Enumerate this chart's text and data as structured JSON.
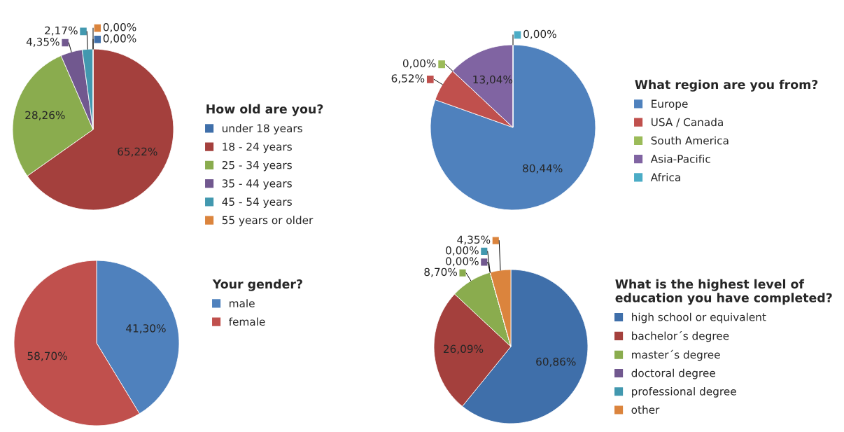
{
  "chart_data": [
    {
      "type": "pie",
      "title": "How old are you?",
      "categories": [
        "under 18 years",
        "18 - 24 years",
        "25 - 34 years",
        "35 - 44 years",
        "45 - 54 years",
        "55 years or older"
      ],
      "values": [
        0,
        65.22,
        28.26,
        4.35,
        2.17,
        0
      ],
      "value_labels": [
        "0,00%",
        "65,22%",
        "28,26%",
        "4,35%",
        "2,17%",
        "0,00%"
      ],
      "colors": [
        "#3f6faa",
        "#a4403d",
        "#8aac4e",
        "#71588f",
        "#4298af",
        "#db843d"
      ],
      "legend": "right"
    },
    {
      "type": "pie",
      "title": "What region are you from?",
      "categories": [
        "Europe",
        "USA / Canada",
        "South America",
        "Asia-Pacific",
        "Africa"
      ],
      "values": [
        80.44,
        6.52,
        0,
        13.04,
        0
      ],
      "value_labels": [
        "80,44%",
        "6,52%",
        "0,00%",
        "13,04%",
        "0,00%"
      ],
      "colors": [
        "#4f81bd",
        "#c0504d",
        "#9bbb59",
        "#8064a2",
        "#4bacc6"
      ],
      "legend": "right"
    },
    {
      "type": "pie",
      "title": "Your gender?",
      "categories": [
        "male",
        "female"
      ],
      "values": [
        41.3,
        58.7
      ],
      "value_labels": [
        "41,30%",
        "58,70%"
      ],
      "colors": [
        "#4f81bd",
        "#c0504d"
      ],
      "legend": "right"
    },
    {
      "type": "pie",
      "title": "What is the highest level of\neducation you have completed?",
      "categories": [
        "high school or equivalent",
        "bachelor´s degree",
        "master´s degree",
        "doctoral degree",
        "professional degree",
        "other"
      ],
      "values": [
        60.86,
        26.09,
        8.7,
        0,
        0,
        4.35
      ],
      "value_labels": [
        "60,86%",
        "26,09%",
        "8,70%",
        "0,00%",
        "0,00%",
        "4,35%"
      ],
      "colors": [
        "#3f6faa",
        "#a4403d",
        "#8aac4e",
        "#71588f",
        "#4298af",
        "#db843d"
      ],
      "legend": "right"
    }
  ]
}
